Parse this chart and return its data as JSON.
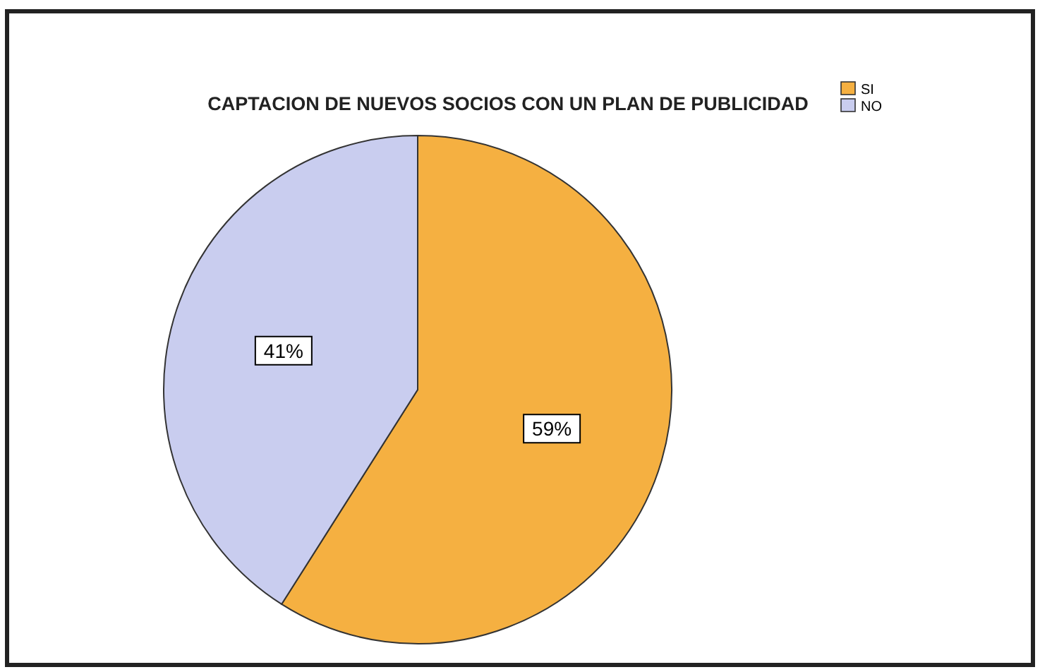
{
  "chart_data": {
    "type": "pie",
    "title": "CAPTACION DE NUEVOS SOCIOS CON UN PLAN DE PUBLICIDAD",
    "categories": [
      "SI",
      "NO"
    ],
    "values": [
      59,
      41
    ],
    "colors": [
      "#f5b041",
      "#c9cdef"
    ],
    "value_labels": [
      "59%",
      "41%"
    ],
    "legend": "top right"
  }
}
